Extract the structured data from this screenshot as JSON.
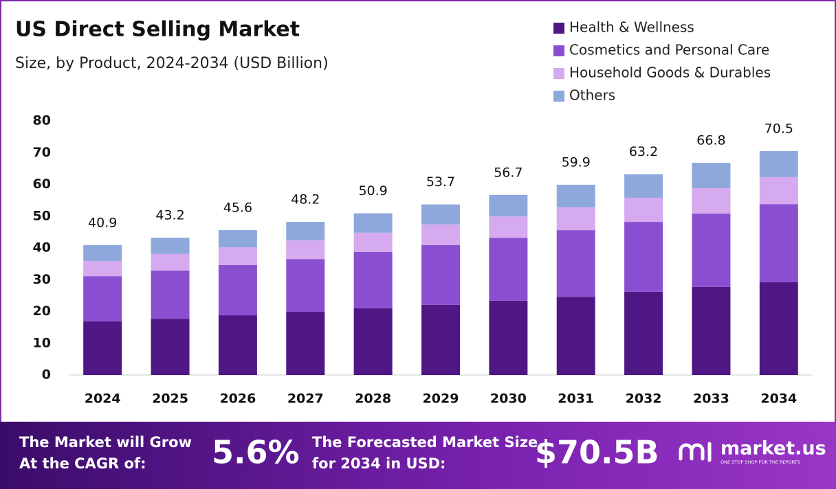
{
  "chart_data": {
    "type": "stacked_bar",
    "title": "US Direct Selling Market",
    "subtitle": "Size, by Product, 2024-2034 (USD Billion)",
    "categories": [
      "2024",
      "2025",
      "2026",
      "2027",
      "2028",
      "2029",
      "2030",
      "2031",
      "2032",
      "2033",
      "2034"
    ],
    "series": [
      {
        "name": "Health & Wellness",
        "color": "#4e1784",
        "values": [
          16.9,
          17.7,
          18.8,
          19.9,
          21.0,
          22.1,
          23.4,
          24.6,
          26.2,
          27.7,
          29.2
        ]
      },
      {
        "name": "Cosmetics and Personal Care",
        "color": "#8a4fd0",
        "values": [
          14.2,
          15.2,
          15.8,
          16.6,
          17.7,
          18.8,
          19.8,
          21.0,
          22.0,
          23.1,
          24.6
        ]
      },
      {
        "name": "Household Goods & Durables",
        "color": "#d6aaee",
        "values": [
          4.8,
          5.2,
          5.6,
          5.9,
          6.1,
          6.5,
          6.7,
          7.2,
          7.6,
          8.0,
          8.5
        ]
      },
      {
        "name": "Others",
        "color": "#8ea8dc",
        "values": [
          5.0,
          5.1,
          5.4,
          5.8,
          6.1,
          6.3,
          6.8,
          7.1,
          7.4,
          8.0,
          8.2
        ]
      }
    ],
    "totals": [
      40.9,
      43.2,
      45.6,
      48.2,
      50.9,
      53.7,
      56.7,
      59.9,
      63.2,
      66.8,
      70.5
    ],
    "ylim": [
      0,
      80
    ],
    "yticks": [
      0,
      10,
      20,
      30,
      40,
      50,
      60,
      70,
      80
    ],
    "grid": false,
    "legend": "top-right"
  },
  "footer": {
    "cagr_text": "The Market will Grow At the CAGR of:",
    "cagr_value": "5.6%",
    "forecast_text": "The Forecasted Market Size for 2034 in USD:",
    "forecast_value": "$70.5B",
    "brand": "market.us",
    "tagline": "ONE STOP SHOP FOR THE REPORTS"
  }
}
